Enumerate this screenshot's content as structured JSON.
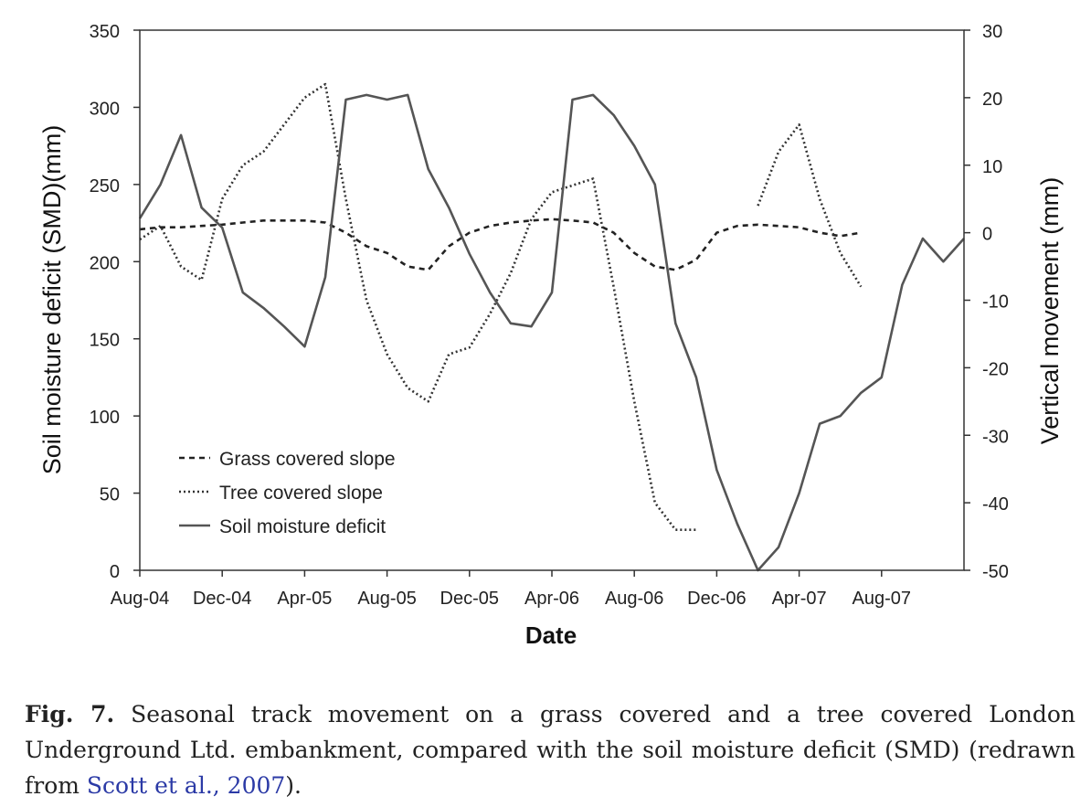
{
  "chart_data": {
    "type": "line",
    "xlabel": "Date",
    "ylabel_left": "Soil moisture deficit (SMD)(mm)",
    "ylabel_right": "Vertical movement (mm)",
    "x_ticks": [
      "Aug-04",
      "Dec-04",
      "Apr-05",
      "Aug-05",
      "Dec-05",
      "Apr-06",
      "Aug-06",
      "Dec-06",
      "Apr-07",
      "Aug-07"
    ],
    "x_range": [
      "2004-08",
      "2007-12"
    ],
    "y_left_range": [
      0,
      350
    ],
    "y_left_ticks": [
      "0",
      "50",
      "100",
      "150",
      "200",
      "250",
      "300",
      "350"
    ],
    "y_right_range": [
      -50,
      30
    ],
    "y_right_ticks": [
      "-50",
      "-40",
      "-30",
      "-20",
      "-10",
      "0",
      "10",
      "20",
      "30"
    ],
    "grid": false,
    "legend_position": "bottom-left",
    "series": [
      {
        "name": "Grass covered slope",
        "axis": "right",
        "style": "dashed",
        "x": [
          "2004-08",
          "2004-09",
          "2004-10",
          "2004-11",
          "2004-12",
          "2005-01",
          "2005-02",
          "2005-03",
          "2005-04",
          "2005-05",
          "2005-06",
          "2005-07",
          "2005-08",
          "2005-09",
          "2005-10",
          "2005-11",
          "2005-12",
          "2006-01",
          "2006-02",
          "2006-03",
          "2006-04",
          "2006-05",
          "2006-06",
          "2006-07",
          "2006-08",
          "2006-09",
          "2006-10",
          "2006-11",
          "2006-12",
          "2007-01",
          "2007-02",
          "2007-03",
          "2007-04",
          "2007-05",
          "2007-06",
          "2007-07",
          "2007-08",
          "2007-09"
        ],
        "values": [
          0.5,
          0.8,
          0.8,
          1.0,
          1.2,
          1.5,
          1.8,
          1.8,
          1.8,
          1.5,
          0,
          -2,
          -3,
          -5,
          -5.5,
          -2,
          0,
          1,
          1.5,
          1.8,
          2.0,
          1.8,
          1.5,
          0,
          -3,
          -5,
          -5.5,
          -4,
          0,
          1,
          1.2,
          1.0,
          0.8,
          0,
          -0.5,
          0,
          null,
          null
        ]
      },
      {
        "name": "Tree covered slope",
        "axis": "right",
        "style": "dotted",
        "x": [
          "2004-08",
          "2004-09",
          "2004-10",
          "2004-11",
          "2004-12",
          "2005-01",
          "2005-02",
          "2005-03",
          "2005-04",
          "2005-05",
          "2005-06",
          "2005-07",
          "2005-08",
          "2005-09",
          "2005-10",
          "2005-11",
          "2005-12",
          "2006-01",
          "2006-02",
          "2006-03",
          "2006-04",
          "2006-05",
          "2006-06",
          "2006-07",
          "2006-08",
          "2006-09",
          "2006-10",
          "2006-11",
          "2006-12",
          "2007-01",
          "2007-02",
          "2007-03",
          "2007-04",
          "2007-05",
          "2007-06",
          "2007-07"
        ],
        "values": [
          -1,
          1,
          -5,
          -7,
          5,
          10,
          12,
          16,
          20,
          22,
          5,
          -10,
          -18,
          -23,
          -25,
          -18,
          -17,
          -12,
          -6,
          2,
          6,
          7,
          8,
          -8,
          -25,
          -40,
          -44,
          -44,
          null,
          null,
          4,
          12,
          16,
          5,
          -3,
          -8
        ]
      },
      {
        "name": "Soil moisture deficit",
        "axis": "left",
        "style": "solid",
        "x": [
          "2004-08",
          "2004-09",
          "2004-10",
          "2004-11",
          "2004-12",
          "2005-01",
          "2005-02",
          "2005-03",
          "2005-04",
          "2005-05",
          "2005-06",
          "2005-07",
          "2005-08",
          "2005-09",
          "2005-10",
          "2005-11",
          "2005-12",
          "2006-01",
          "2006-02",
          "2006-03",
          "2006-04",
          "2006-05",
          "2006-06",
          "2006-07",
          "2006-08",
          "2006-09",
          "2006-10",
          "2006-11",
          "2006-12",
          "2007-01",
          "2007-02",
          "2007-03",
          "2007-04",
          "2007-05",
          "2007-06",
          "2007-07",
          "2007-08",
          "2007-09",
          "2007-10",
          "2007-11",
          "2007-12"
        ],
        "values": [
          228,
          250,
          282,
          235,
          222,
          180,
          170,
          158,
          145,
          190,
          305,
          308,
          305,
          308,
          260,
          235,
          205,
          180,
          160,
          158,
          180,
          305,
          308,
          295,
          275,
          250,
          160,
          125,
          65,
          30,
          0,
          15,
          50,
          95,
          100,
          115,
          125,
          185,
          215,
          200,
          215
        ]
      }
    ]
  },
  "caption": {
    "label": "Fig. 7.",
    "text": " Seasonal track movement on a grass covered and a tree covered London Underground Ltd. embankment, compared with the soil moisture deficit (SMD) (redrawn from ",
    "citation": "Scott et al., 2007",
    "end": ")."
  }
}
